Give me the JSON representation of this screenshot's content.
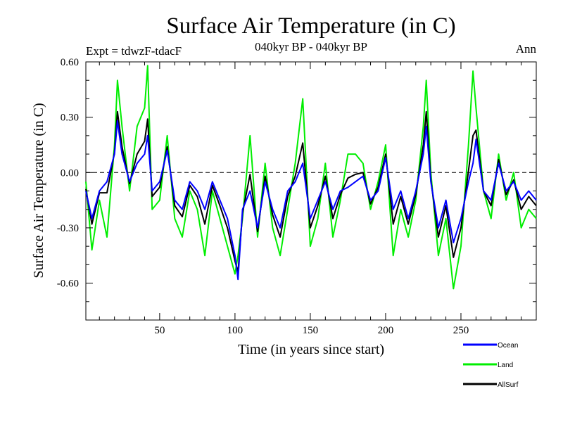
{
  "chart_data": {
    "type": "line",
    "title": "Surface Air Temperature (in C)",
    "subtitle_center": "040kyr BP - 040kyr BP",
    "subtitle_left": "Expt = tdwzF-tdacF",
    "subtitle_right": "Ann",
    "xlabel": "Time (in years since start)",
    "ylabel": "Surface Air Temperature (in C)",
    "xlim": [
      1,
      300
    ],
    "ylim": [
      -0.8,
      0.6
    ],
    "x_ticks": [
      50,
      100,
      150,
      200,
      250
    ],
    "x_tick_labels": [
      "50",
      "100",
      "150",
      "200",
      "250"
    ],
    "y_ticks": [
      0.6,
      0.3,
      0.0,
      -0.3,
      -0.6
    ],
    "y_tick_labels": [
      "0.60",
      "0.30",
      "0.00",
      "-0.30",
      "-0.60"
    ],
    "reference_line": 0.0,
    "legend_position": "bottom-right",
    "series": [
      {
        "name": "Ocean",
        "color": "#0000ff",
        "x": [
          1,
          5,
          10,
          15,
          20,
          22,
          25,
          30,
          35,
          40,
          42,
          45,
          50,
          55,
          60,
          65,
          70,
          75,
          80,
          85,
          90,
          95,
          100,
          102,
          105,
          110,
          115,
          120,
          125,
          130,
          135,
          140,
          145,
          150,
          155,
          160,
          165,
          170,
          175,
          180,
          185,
          190,
          195,
          200,
          205,
          210,
          215,
          220,
          225,
          227,
          230,
          235,
          240,
          245,
          250,
          255,
          258,
          260,
          265,
          270,
          275,
          280,
          285,
          290,
          295,
          300
        ],
        "values": [
          -0.1,
          -0.25,
          -0.1,
          -0.05,
          0.1,
          0.28,
          0.1,
          -0.05,
          0.05,
          0.1,
          0.2,
          -0.1,
          -0.05,
          0.12,
          -0.15,
          -0.2,
          -0.05,
          -0.1,
          -0.2,
          -0.05,
          -0.15,
          -0.25,
          -0.45,
          -0.58,
          -0.2,
          -0.1,
          -0.3,
          -0.05,
          -0.2,
          -0.3,
          -0.1,
          -0.05,
          0.05,
          -0.25,
          -0.15,
          -0.05,
          -0.2,
          -0.1,
          -0.08,
          -0.05,
          -0.02,
          -0.15,
          -0.1,
          0.08,
          -0.2,
          -0.1,
          -0.25,
          -0.1,
          0.1,
          0.25,
          -0.05,
          -0.3,
          -0.15,
          -0.38,
          -0.25,
          -0.05,
          0.05,
          0.18,
          -0.1,
          -0.15,
          0.05,
          -0.1,
          -0.05,
          -0.15,
          -0.1,
          -0.15
        ]
      },
      {
        "name": "Land",
        "color": "#00ee00",
        "x": [
          1,
          5,
          10,
          15,
          20,
          22,
          25,
          30,
          35,
          40,
          42,
          45,
          50,
          55,
          60,
          65,
          70,
          75,
          80,
          85,
          90,
          95,
          100,
          102,
          105,
          110,
          115,
          120,
          125,
          130,
          135,
          140,
          145,
          150,
          155,
          160,
          165,
          170,
          175,
          180,
          185,
          190,
          195,
          200,
          205,
          210,
          215,
          220,
          225,
          227,
          230,
          235,
          240,
          245,
          250,
          255,
          258,
          260,
          265,
          270,
          275,
          280,
          285,
          290,
          295,
          300
        ],
        "values": [
          -0.05,
          -0.42,
          -0.15,
          -0.35,
          0.15,
          0.5,
          0.25,
          -0.1,
          0.25,
          0.35,
          0.58,
          -0.2,
          -0.15,
          0.2,
          -0.25,
          -0.35,
          -0.1,
          -0.2,
          -0.45,
          -0.1,
          -0.25,
          -0.4,
          -0.55,
          -0.45,
          -0.25,
          0.2,
          -0.35,
          0.05,
          -0.3,
          -0.45,
          -0.2,
          0.05,
          0.4,
          -0.4,
          -0.25,
          0.05,
          -0.35,
          -0.15,
          0.1,
          0.1,
          0.05,
          -0.2,
          -0.05,
          0.15,
          -0.45,
          -0.2,
          -0.35,
          -0.15,
          0.25,
          0.5,
          0.0,
          -0.45,
          -0.25,
          -0.63,
          -0.4,
          0.15,
          0.55,
          0.35,
          -0.1,
          -0.25,
          0.1,
          -0.15,
          0.0,
          -0.3,
          -0.2,
          -0.25
        ]
      },
      {
        "name": "AllSurf",
        "color": "#000000",
        "x": [
          1,
          5,
          10,
          15,
          20,
          22,
          25,
          30,
          35,
          40,
          42,
          45,
          50,
          55,
          60,
          65,
          70,
          75,
          80,
          85,
          90,
          95,
          100,
          102,
          105,
          110,
          115,
          120,
          125,
          130,
          135,
          140,
          145,
          150,
          155,
          160,
          165,
          170,
          175,
          180,
          185,
          190,
          195,
          200,
          205,
          210,
          215,
          220,
          225,
          227,
          230,
          235,
          240,
          245,
          250,
          255,
          258,
          260,
          265,
          270,
          275,
          280,
          285,
          290,
          295,
          300
        ],
        "values": [
          -0.09,
          -0.28,
          -0.11,
          -0.11,
          0.11,
          0.33,
          0.14,
          -0.06,
          0.1,
          0.17,
          0.29,
          -0.13,
          -0.08,
          0.14,
          -0.18,
          -0.24,
          -0.07,
          -0.13,
          -0.28,
          -0.07,
          -0.18,
          -0.3,
          -0.48,
          -0.54,
          -0.22,
          -0.01,
          -0.32,
          -0.02,
          -0.23,
          -0.35,
          -0.13,
          -0.02,
          0.16,
          -0.3,
          -0.18,
          -0.02,
          -0.25,
          -0.12,
          -0.03,
          -0.01,
          0.0,
          -0.17,
          -0.08,
          0.1,
          -0.28,
          -0.13,
          -0.28,
          -0.12,
          0.15,
          0.33,
          -0.04,
          -0.35,
          -0.18,
          -0.46,
          -0.3,
          0.01,
          0.2,
          0.23,
          -0.1,
          -0.18,
          0.07,
          -0.12,
          -0.04,
          -0.2,
          -0.13,
          -0.18
        ]
      }
    ]
  }
}
